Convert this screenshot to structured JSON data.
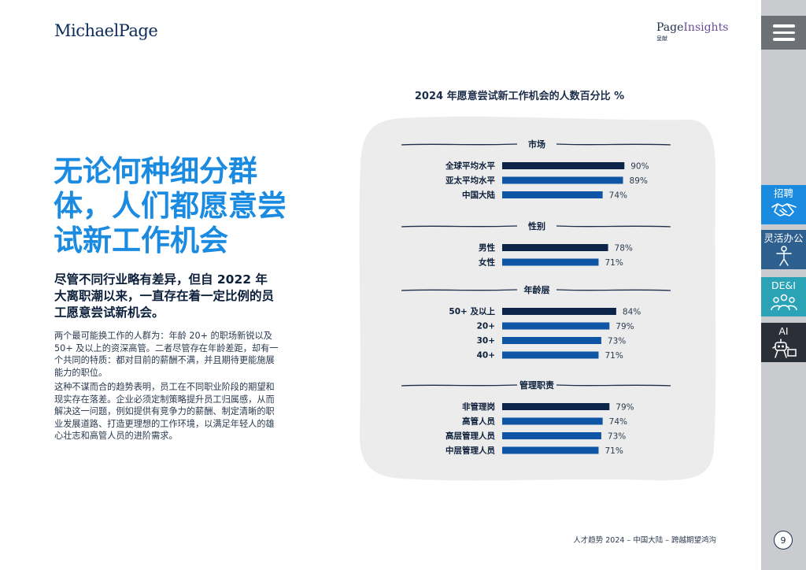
{
  "header": {
    "logo_left": "MichaelPage",
    "logo_right_page": "Page",
    "logo_right_insights": "Insights",
    "logo_right_sub": "呈献"
  },
  "main": {
    "headline": "无论何种细分群体，人们都愿意尝试新工作机会",
    "subhead": "尽管不同行业略有差异，但自 2022 年大离职潮以来，一直存在着一定比例的员工愿意尝试新机会。",
    "paragraph1": "两个最可能换工作的人群为：年龄 20+ 的职场新锐以及 50+ 及以上的资深高管。二者尽管存在年龄差距，却有一个共同的特质：都对目前的薪酬不满，并且期待更能施展能力的职位。",
    "paragraph2": "这种不谋而合的趋势表明，员工在不同职业阶段的期望和现实存在落差。企业必须定制策略提升员工归属感，从而解决这一问题，例如提供有竞争力的薪酬、制定清晰的职业发展道路、打造更理想的工作环境，以满足年轻人的雄心壮志和高管人员的进阶需求。"
  },
  "chart_data": {
    "type": "bar",
    "orientation": "horizontal",
    "title": "2024 年愿意尝试新工作机会的人数百分比 %",
    "value_suffix": "%",
    "groups": [
      {
        "name": "市场",
        "categories": [
          "全球平均水平",
          "亚太平均水平",
          "中国大陆"
        ],
        "values": [
          90,
          89,
          74
        ],
        "colors": [
          "#0b2447",
          "#0e55a6",
          "#0e55a6"
        ]
      },
      {
        "name": "性别",
        "categories": [
          "男性",
          "女性"
        ],
        "values": [
          78,
          71
        ],
        "colors": [
          "#0b2447",
          "#0e55a6"
        ]
      },
      {
        "name": "年龄层",
        "categories": [
          "50+ 及以上",
          "20+",
          "30+",
          "40+"
        ],
        "values": [
          84,
          79,
          73,
          71
        ],
        "colors": [
          "#0b2447",
          "#0e55a6",
          "#0e55a6",
          "#0e55a6"
        ]
      },
      {
        "name": "管理职责",
        "categories": [
          "非管理岗",
          "高管人员",
          "高层管理人员",
          "中层管理人员"
        ],
        "values": [
          79,
          74,
          73,
          71
        ],
        "colors": [
          "#0b2447",
          "#0e55a6",
          "#0e55a6",
          "#0e55a6"
        ]
      }
    ]
  },
  "footer": {
    "text": "人才趋势 2024 – 中国大陆 – 跨越期望鸿沟"
  },
  "sidebar": {
    "menu_icon": "hamburger-icon",
    "tabs": [
      {
        "label": "招聘",
        "icon": "handshake-icon",
        "color": "#1a8be0"
      },
      {
        "label": "灵活办公",
        "icon": "person-icon",
        "color": "#2d5f8f"
      },
      {
        "label": "DE&I",
        "icon": "group-icon",
        "color": "#2aa3b6"
      },
      {
        "label": "AI",
        "icon": "robot-icon",
        "color": "#2b3038"
      }
    ],
    "page_number": "9"
  }
}
